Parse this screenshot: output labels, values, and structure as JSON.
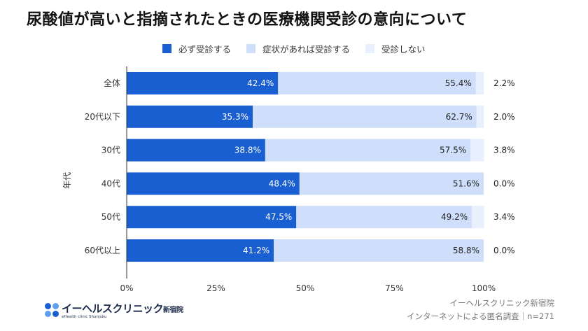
{
  "title": "尿酸値が高いと指摘されたときの医療機関受診の意向について",
  "chart_data": {
    "type": "bar",
    "stacked": true,
    "orientation": "horizontal",
    "ylabel": "年代",
    "categories": [
      "全体",
      "20代以下",
      "30代",
      "40代",
      "50代",
      "60代以上"
    ],
    "series": [
      {
        "name": "必ず受診する",
        "color": "#1a5fd1",
        "values": [
          42.4,
          35.3,
          38.8,
          48.4,
          47.5,
          41.2
        ],
        "labels": [
          "42.4%",
          "35.3%",
          "38.8%",
          "48.4%",
          "47.5%",
          "41.2%"
        ]
      },
      {
        "name": "症状があれば受診する",
        "color": "#cfdffb",
        "values": [
          55.4,
          62.7,
          57.5,
          51.6,
          49.2,
          58.8
        ],
        "labels": [
          "55.4%",
          "62.7%",
          "57.5%",
          "51.6%",
          "49.2%",
          "58.8%"
        ]
      },
      {
        "name": "受診しない",
        "color": "#e9f0fd",
        "values": [
          2.2,
          2.0,
          3.8,
          0.0,
          3.4,
          0.0
        ],
        "labels": [
          "2.2%",
          "2.0%",
          "3.8%",
          "0.0%",
          "3.4%",
          "0.0%"
        ]
      }
    ],
    "xlim": [
      0,
      100
    ],
    "xticks": [
      "0%",
      "25%",
      "50%",
      "75%",
      "100%"
    ],
    "legend_position": "top",
    "grid": false
  },
  "logo": {
    "name": "イーヘルスクリニック",
    "suffix": "新宿院",
    "sub": "eHealth clinic Shunjuku"
  },
  "footer": {
    "line1": "イーヘルスクリニック新宿院",
    "line2": "インターネットによる匿名調査｜n=271"
  }
}
